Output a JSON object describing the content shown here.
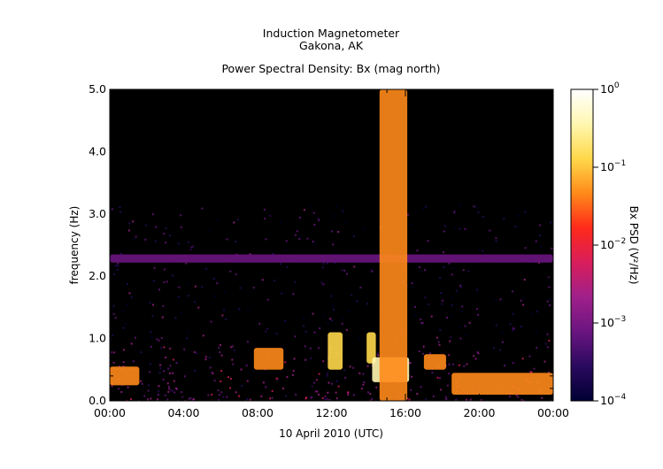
{
  "chart_data": {
    "type": "heatmap",
    "title_lines": [
      "Induction Magnetometer",
      "Gakona, AK"
    ],
    "subtitle": "Power Spectral Density: Bx (mag north)",
    "xlabel": "10 April 2010 (UTC)",
    "ylabel": "frequency (Hz)",
    "x_ticks": [
      "00:00",
      "04:00",
      "08:00",
      "12:00",
      "16:00",
      "20:00",
      "00:00"
    ],
    "x_range_hours": [
      0,
      24
    ],
    "y_ticks": [
      "0.0",
      "1.0",
      "2.0",
      "3.0",
      "4.0",
      "5.0"
    ],
    "y_range_hz": [
      0,
      5
    ],
    "colorbar": {
      "label": "Bx PSD (V²/Hz)",
      "scale": "log",
      "range": [
        0.0001,
        1
      ],
      "ticks": [
        {
          "base": "10",
          "exp": "0"
        },
        {
          "base": "10",
          "exp": "−1"
        },
        {
          "base": "10",
          "exp": "−2"
        },
        {
          "base": "10",
          "exp": "−3"
        },
        {
          "base": "10",
          "exp": "−4"
        }
      ],
      "colors": [
        "#000033",
        "#2a0a5e",
        "#6a1580",
        "#a0208a",
        "#d81e5b",
        "#ff2a1a",
        "#ff8a1a",
        "#ffd84a",
        "#fff7b0",
        "#ffffff"
      ]
    },
    "features": [
      {
        "name": "Pc1 band",
        "hours": [
          0,
          1.6
        ],
        "freq_hz": [
          0.25,
          0.55
        ],
        "log_psd": -1.4
      },
      {
        "name": "Pc1 band",
        "hours": [
          7.8,
          9.4
        ],
        "freq_hz": [
          0.5,
          0.85
        ],
        "log_psd": -1.5
      },
      {
        "name": "Pc1 band",
        "hours": [
          11.8,
          12.6
        ],
        "freq_hz": [
          0.5,
          1.1
        ],
        "log_psd": -1.1
      },
      {
        "name": "Pc1 band",
        "hours": [
          13.9,
          14.4
        ],
        "freq_hz": [
          0.6,
          1.1
        ],
        "log_psd": -1.0
      },
      {
        "name": "Pc1 band",
        "hours": [
          14.2,
          16.2
        ],
        "freq_hz": [
          0.3,
          0.7
        ],
        "log_psd": -0.6
      },
      {
        "name": "Pc1 band",
        "hours": [
          17,
          18.2
        ],
        "freq_hz": [
          0.5,
          0.75
        ],
        "log_psd": -1.3
      },
      {
        "name": "Pc1 band",
        "hours": [
          18.5,
          24
        ],
        "freq_hz": [
          0.1,
          0.45
        ],
        "log_psd": -1.5
      },
      {
        "name": "harmonic line",
        "hours": [
          0,
          24
        ],
        "freq_hz": [
          2.22,
          2.35
        ],
        "log_psd": -3.0
      },
      {
        "name": "broadband burst",
        "hours": [
          14.6,
          16.1
        ],
        "freq_hz": [
          0,
          5
        ],
        "log_psd": -1.3
      }
    ]
  }
}
